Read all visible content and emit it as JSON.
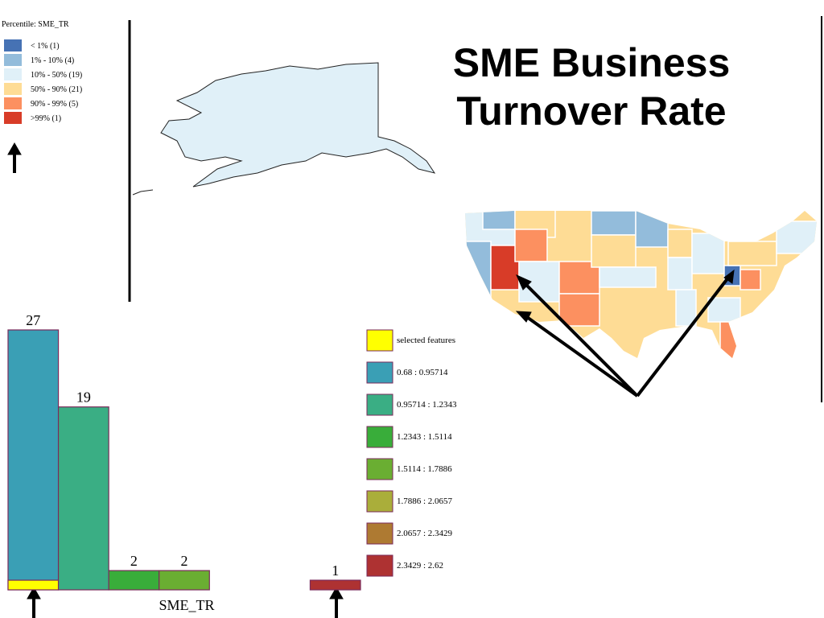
{
  "title": "SME Business Turnover Rate",
  "map_legend": {
    "title": "Percentile: SME_TR",
    "items": [
      {
        "label": "< 1% (1)",
        "color": "#4672b4"
      },
      {
        "label": "1% - 10% (4)",
        "color": "#93bcdb"
      },
      {
        "label": "10% - 50% (19)",
        "color": "#e0f0f8"
      },
      {
        "label": "50% - 90% (21)",
        "color": "#fedc95"
      },
      {
        "label": "90% - 99% (5)",
        "color": "#fc9060"
      },
      {
        "label": ">99% (1)",
        "color": "#d83c28"
      }
    ]
  },
  "chart_data": {
    "type": "histogram",
    "xlabel": "SME_TR",
    "bins": [
      0.68,
      0.95714,
      1.2343,
      1.5114,
      1.7886,
      2.0657,
      2.3429,
      2.62
    ],
    "counts": [
      27,
      19,
      2,
      2,
      0,
      0,
      1
    ],
    "colors": [
      "#3a9fb5",
      "#3aae84",
      "#39ad3a",
      "#6aae32",
      "#aaae3a",
      "#ae7a32",
      "#ae3232"
    ],
    "bin_labels": [
      "0.68 : 0.95714",
      "0.95714 : 1.2343",
      "1.2343 : 1.5114",
      "1.5114 : 1.7886",
      "1.7886 : 2.0657",
      "2.0657 : 2.3429",
      "2.3429 : 2.62"
    ],
    "selected": {
      "name": "selected features",
      "color": "#ffff00",
      "values": [
        1,
        0,
        0,
        0,
        0,
        0,
        0
      ]
    }
  }
}
